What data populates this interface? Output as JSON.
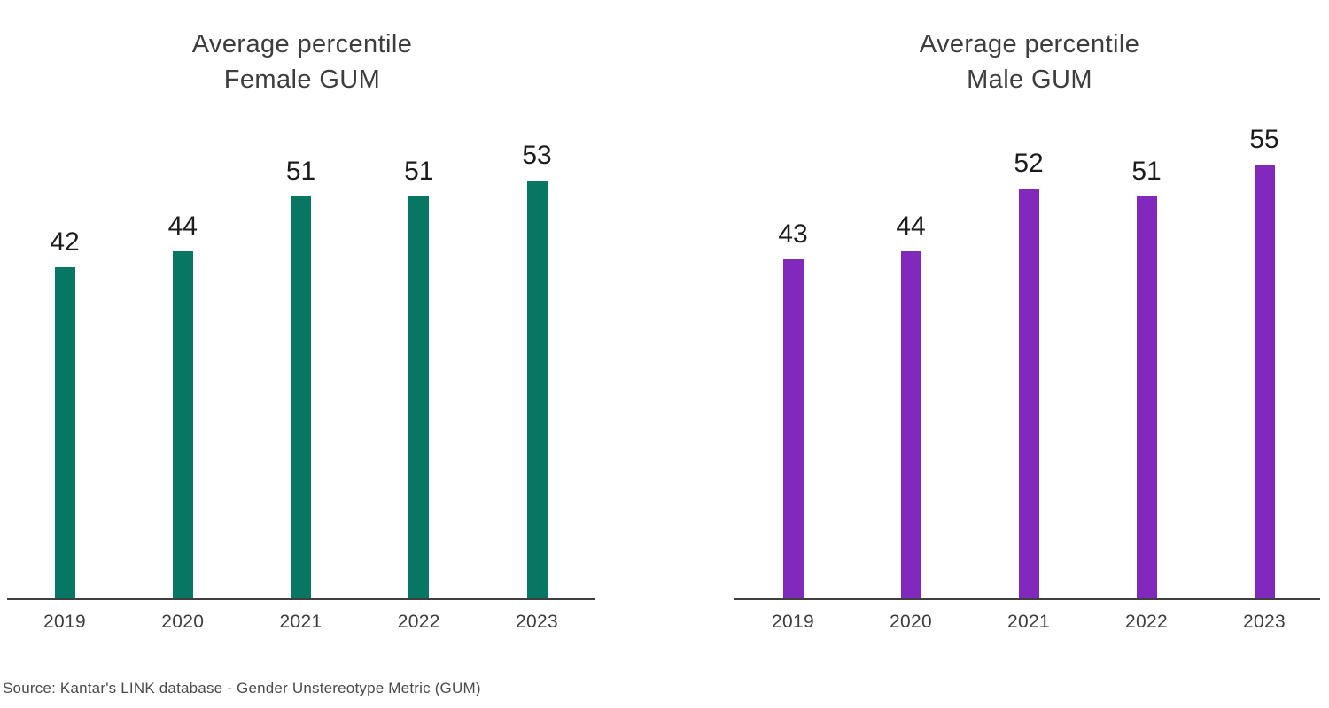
{
  "page": {
    "background": "#ffffff"
  },
  "source_note": "Source: Kantar's LINK database - Gender Unstereotype Metric (GUM)",
  "colors": {
    "female_bar": "#077663",
    "male_bar": "#8029BA",
    "title_text": "#3d3d3d",
    "value_text": "#1c1c1c",
    "axis_text": "#3d3d3d",
    "axis_line": "#3f3f3f",
    "source_text": "#4a4a4a"
  },
  "chart_data": [
    {
      "type": "bar",
      "title": "Average percentile Female GUM",
      "title_line1": "Average percentile",
      "title_line2": "Female GUM",
      "categories": [
        "2019",
        "2020",
        "2021",
        "2022",
        "2023"
      ],
      "values": [
        42,
        44,
        51,
        51,
        53
      ],
      "bar_color": "#077663",
      "xlabel": "",
      "ylabel": "",
      "ylim": [
        0,
        60
      ],
      "grid": false,
      "legend": "none",
      "value_labels_shown": true
    },
    {
      "type": "bar",
      "title": "Average percentile Male GUM",
      "title_line1": "Average percentile",
      "title_line2": "Male GUM",
      "categories": [
        "2019",
        "2020",
        "2021",
        "2022",
        "2023"
      ],
      "values": [
        43,
        44,
        52,
        51,
        55
      ],
      "bar_color": "#8029BA",
      "xlabel": "",
      "ylabel": "",
      "ylim": [
        0,
        60
      ],
      "grid": false,
      "legend": "none",
      "value_labels_shown": true
    }
  ]
}
